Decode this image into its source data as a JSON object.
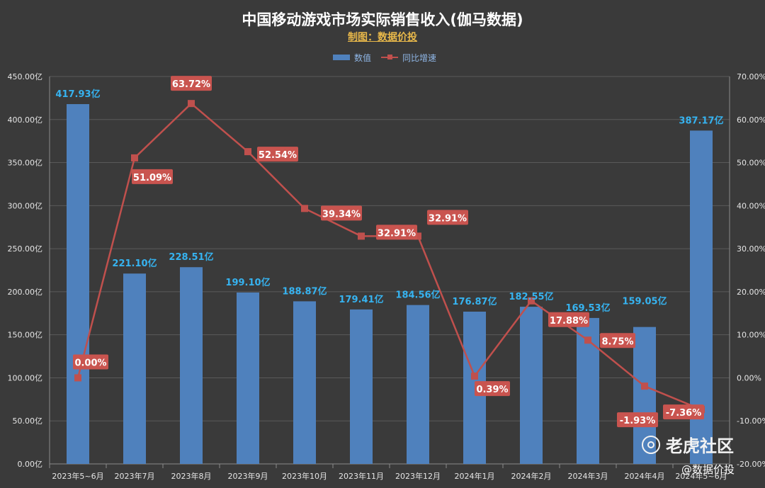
{
  "chart_data": {
    "type": "bar+line",
    "title": "中国移动游戏市场实际销售收入(伽马数据)",
    "subtitle": "制图：数据价投",
    "legend": [
      "数值",
      "同比增速"
    ],
    "legend_placement": "top-center",
    "grid": true,
    "categories": [
      "2023年5~6月",
      "2023年7月",
      "2023年8月",
      "2023年9月",
      "2023年10月",
      "2023年11月",
      "2023年12月",
      "2024年1月",
      "2024年2月",
      "2024年3月",
      "2024年4月",
      "2024年5~6月"
    ],
    "series": [
      {
        "name": "数值",
        "type": "bar",
        "axis": "left",
        "values": [
          417.93,
          221.1,
          228.51,
          199.1,
          188.87,
          179.41,
          184.56,
          176.87,
          182.55,
          169.53,
          159.05,
          387.17
        ],
        "labels": [
          "417.93亿",
          "221.10亿",
          "228.51亿",
          "199.10亿",
          "188.87亿",
          "179.41亿",
          "184.56亿",
          "176.87亿",
          "182.55亿",
          "169.53亿",
          "159.05亿",
          "387.17亿"
        ],
        "color": "#4f81bd"
      },
      {
        "name": "同比增速",
        "type": "line",
        "axis": "right",
        "values": [
          0.0,
          51.09,
          63.72,
          52.54,
          39.34,
          32.91,
          32.91,
          0.39,
          17.88,
          8.75,
          -1.93,
          -7.36
        ],
        "labels": [
          "0.00%",
          "51.09%",
          "63.72%",
          "52.54%",
          "39.34%",
          "32.91%",
          "32.91%",
          "0.39%",
          "17.88%",
          "8.75%",
          "-1.93%",
          "-7.36%"
        ],
        "color": "#c0504d"
      }
    ],
    "y_left": {
      "ylim": [
        0,
        450
      ],
      "ticks": [
        "0.00亿",
        "50.00亿",
        "100.00亿",
        "150.00亿",
        "200.00亿",
        "250.00亿",
        "300.00亿",
        "350.00亿",
        "400.00亿",
        "450.00亿"
      ]
    },
    "y_right": {
      "ylim": [
        -20,
        70
      ],
      "ticks": [
        "-20.00%",
        "-10.00%",
        "0.00%",
        "10.00%",
        "20.00%",
        "30.00%",
        "40.00%",
        "50.00%",
        "60.00%",
        "70.00%"
      ]
    }
  },
  "watermark": {
    "text": "老虎社区",
    "icon": "tiger-community-icon"
  },
  "brand": "@数据价投"
}
